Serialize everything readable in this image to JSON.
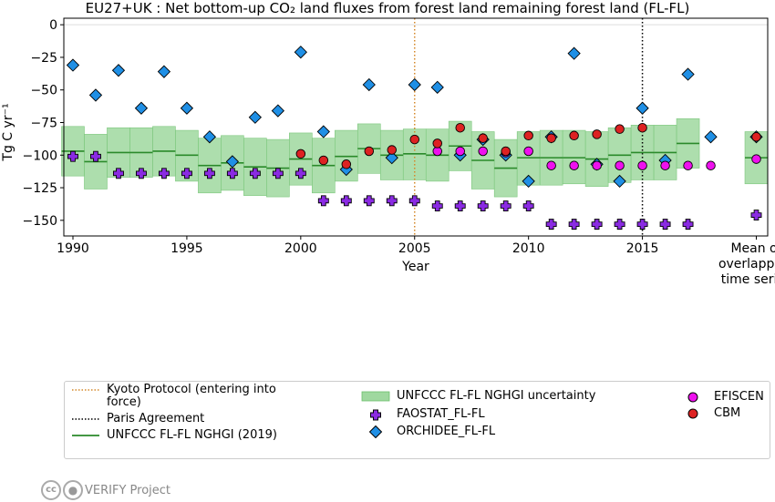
{
  "chart_data": {
    "type": "scatter",
    "title": "EU27+UK : Net bottom-up CO₂ land fluxes from forest land remaining forest land (FL-FL)",
    "xlabel": "Year",
    "ylabel": "Tg C yr⁻¹",
    "xlim": [
      1989.6,
      2020.5
    ],
    "ylim": [
      -162,
      5
    ],
    "xticks": [
      1990,
      1995,
      2000,
      2005,
      2010,
      2015
    ],
    "yticks": [
      0,
      -25,
      -50,
      -75,
      -100,
      -125,
      -150
    ],
    "extra_xtick_label": "Mean of\noverlapping\ntime series",
    "grid": false,
    "zero_line": true,
    "vlines": [
      {
        "name": "Kyoto Protocol (entering into force)",
        "x": 2005,
        "color": "#d4882a",
        "style": "dotted"
      },
      {
        "name": "Paris Agreement",
        "x": 2015,
        "color": "#000000",
        "style": "dotted"
      }
    ],
    "nghgi": {
      "name": "UNFCCC FL-FL NGHGI (2019)",
      "uncertainty_name": "UNFCCC FL-FL NGHGI uncertainty",
      "color": "#2a8a2a",
      "band_color": "#9fd89f",
      "years": [
        1990,
        1991,
        1992,
        1993,
        1994,
        1995,
        1996,
        1997,
        1998,
        1999,
        2000,
        2001,
        2002,
        2003,
        2004,
        2005,
        2006,
        2007,
        2008,
        2009,
        2010,
        2011,
        2012,
        2013,
        2014,
        2015,
        2016,
        2017
      ],
      "values": [
        -97,
        -105,
        -98,
        -98,
        -97,
        -100,
        -108,
        -106,
        -109,
        -110,
        -103,
        -108,
        -101,
        -95,
        -100,
        -99,
        -100,
        -93,
        -104,
        -110,
        -102,
        -102,
        -102,
        -103,
        -100,
        -98,
        -98,
        -91
      ],
      "lower": [
        -116,
        -126,
        -117,
        -117,
        -116,
        -120,
        -129,
        -127,
        -131,
        -132,
        -123,
        -129,
        -120,
        -114,
        -119,
        -119,
        -120,
        -112,
        -126,
        -132,
        -123,
        -123,
        -122,
        -124,
        -121,
        -119,
        -119,
        -110
      ],
      "upper": [
        -78,
        -84,
        -79,
        -79,
        -78,
        -81,
        -87,
        -85,
        -87,
        -88,
        -83,
        -87,
        -81,
        -76,
        -81,
        -80,
        -80,
        -74,
        -82,
        -88,
        -82,
        -81,
        -81,
        -82,
        -79,
        -77,
        -77,
        -72
      ]
    },
    "series": [
      {
        "name": "FAOSTAT_FL-FL",
        "marker": "plus",
        "color": "#8a2be2",
        "x": [
          1990,
          1991,
          1992,
          1993,
          1994,
          1995,
          1996,
          1997,
          1998,
          1999,
          2000,
          2001,
          2002,
          2003,
          2004,
          2005,
          2006,
          2007,
          2008,
          2009,
          2010,
          2011,
          2012,
          2013,
          2014,
          2015,
          2016,
          2017
        ],
        "y": [
          -101,
          -101,
          -114,
          -114,
          -114,
          -114,
          -114,
          -114,
          -114,
          -114,
          -114,
          -135,
          -135,
          -135,
          -135,
          -135,
          -139,
          -139,
          -139,
          -139,
          -139,
          -153,
          -153,
          -153,
          -153,
          -153,
          -153,
          -153
        ]
      },
      {
        "name": "ORCHIDEE_FL-FL",
        "marker": "diamond",
        "color": "#1f8fe5",
        "x": [
          1990,
          1991,
          1992,
          1993,
          1994,
          1995,
          1996,
          1997,
          1998,
          1999,
          2000,
          2001,
          2002,
          2003,
          2004,
          2005,
          2006,
          2007,
          2008,
          2009,
          2010,
          2011,
          2012,
          2013,
          2014,
          2015,
          2016,
          2017,
          2018
        ],
        "y": [
          -31,
          -54,
          -35,
          -64,
          -36,
          -64,
          -86,
          -105,
          -71,
          -66,
          -21,
          -82,
          -111,
          -46,
          -102,
          -46,
          -48,
          -100,
          -88,
          -100,
          -120,
          -86,
          -22,
          -107,
          -120,
          -64,
          -104,
          -38,
          -86
        ]
      },
      {
        "name": "EFISCEN",
        "marker": "circle",
        "color": "#ee11ee",
        "x": [
          2006,
          2007,
          2008,
          2009,
          2010,
          2011,
          2012,
          2013,
          2014,
          2015,
          2016,
          2017,
          2018
        ],
        "y": [
          -97,
          -97,
          -97,
          -98,
          -97,
          -108,
          -108,
          -108,
          -108,
          -108,
          -108,
          -108,
          -108
        ]
      },
      {
        "name": "CBM",
        "marker": "circle",
        "color": "#dd2222",
        "x": [
          2000,
          2001,
          2002,
          2003,
          2004,
          2005,
          2006,
          2007,
          2008,
          2009,
          2010,
          2011,
          2012,
          2013,
          2014,
          2015
        ],
        "y": [
          -99,
          -104,
          -107,
          -97,
          -96,
          -88,
          -91,
          -79,
          -87,
          -97,
          -85,
          -87,
          -85,
          -84,
          -80,
          -79
        ]
      }
    ],
    "means": {
      "x": 2020,
      "nghgi": {
        "value": -102,
        "lower": -122,
        "upper": -82
      },
      "FAOSTAT_FL-FL": -146,
      "ORCHIDEE_FL-FL": -86,
      "EFISCEN": -103,
      "CBM": -86
    },
    "legend": {
      "placement": "bottom",
      "items": [
        {
          "key": "kyoto",
          "label": "Kyoto Protocol (entering into force)"
        },
        {
          "key": "paris",
          "label": "Paris Agreement"
        },
        {
          "key": "nghgi",
          "label": "UNFCCC FL-FL NGHGI (2019)"
        },
        {
          "key": "band",
          "label": "UNFCCC FL-FL NGHGI uncertainty"
        },
        {
          "key": "fao",
          "label": "FAOSTAT_FL-FL"
        },
        {
          "key": "orchidee",
          "label": "ORCHIDEE_FL-FL"
        },
        {
          "key": "efiscen",
          "label": "EFISCEN"
        },
        {
          "key": "cbm",
          "label": "CBM"
        }
      ]
    }
  },
  "credit": {
    "cc_icon": "cc",
    "text": "VERIFY Project"
  }
}
